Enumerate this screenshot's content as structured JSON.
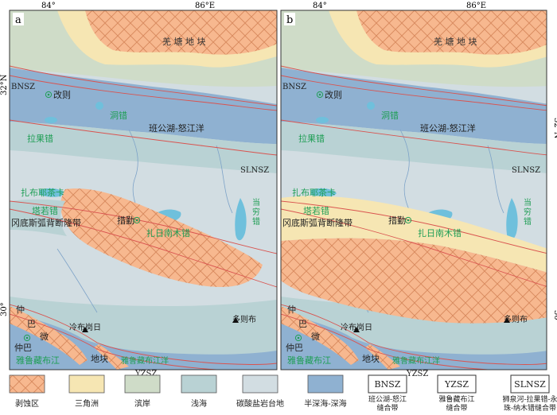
{
  "colors": {
    "erosion": "#f7b88f",
    "erosion_line": "#d88a5e",
    "delta": "#f6e6b3",
    "shore": "#cfdcc8",
    "shallow": "#b9d2d4",
    "carbonate": "#d2dde2",
    "deep": "#8fb1d1",
    "lake": "#6fc0dc",
    "fault": "#d9534f",
    "river": "#7ea3c8",
    "green_text": "#1f9e55",
    "frame": "#333333"
  },
  "coords": {
    "top_ticks": [
      "84°",
      "86°E"
    ],
    "lat_32": "32°N",
    "lat_30": "30°"
  },
  "panels": [
    {
      "letter": "a",
      "labels": {
        "qiangtang": "羌 塘 地 块",
        "bnsz": "BNSZ",
        "gaize": "改则",
        "dongcuo": "洞错",
        "bangong_ocean": "班公湖-怒江洋",
        "laguocuo": "拉果错",
        "slnsz": "SLNSZ",
        "zhabuye": "扎布耶茶卡",
        "taruocuo": "塔若错",
        "gangdise": "冈底斯弧背断隆带",
        "cuoqin": "措勤",
        "zhari": "扎日南木错",
        "dangqiong": "当穷错",
        "duobu": "多则布",
        "lengbu": "冷布岗日",
        "zhongba": "仲巴",
        "zhongba_area": "仲巴微",
        "diku": "地块",
        "yarlung": "雅鲁藏布江",
        "yarlung_ocean": "雅鲁藏布江洋",
        "yzsz": "YZSZ"
      }
    },
    {
      "letter": "b",
      "labels": {
        "qiangtang": "羌 塘 地 块",
        "bnsz": "BNSZ",
        "gaize": "改则",
        "dongcuo": "洞错",
        "bangong_ocean": "班公湖-怒江洋",
        "laguocuo": "拉果错",
        "slnsz": "SLNSZ",
        "zhabuye": "扎布耶茶卡",
        "taruocuo": "塔若错",
        "gangdise": "冈底斯弧背断隆带",
        "cuoqin": "措勤",
        "zhari": "扎日南木错",
        "dangqiong": "当穷错",
        "duobu": "多则布",
        "lengbu": "冷布岗日",
        "zhongba": "仲巴",
        "zhongba_area": "仲巴微",
        "diku": "地块",
        "yarlung": "雅鲁藏布江",
        "yarlung_ocean": "雅鲁藏布江洋",
        "yzsz": "YZSZ"
      }
    }
  ],
  "legend": [
    {
      "key": "erosion",
      "label": "剥蚀区",
      "type": "swatch"
    },
    {
      "key": "delta",
      "label": "三角洲",
      "type": "swatch"
    },
    {
      "key": "shore",
      "label": "滨岸",
      "type": "swatch"
    },
    {
      "key": "shallow",
      "label": "浅海",
      "type": "swatch"
    },
    {
      "key": "carbonate",
      "label": "碳酸盐岩台地",
      "type": "swatch"
    },
    {
      "key": "deep",
      "label": "半深海-深海",
      "type": "swatch"
    },
    {
      "key": "bnsz",
      "label": "班公湖-怒江缝合带",
      "type": "box",
      "box_text": "BNSZ"
    },
    {
      "key": "yzsz",
      "label": "雅鲁藏布江缝合带",
      "type": "box",
      "box_text": "YZSZ"
    },
    {
      "key": "slnsz",
      "label": "狮泉河-拉果错-永珠-纳木错缝合带",
      "type": "box",
      "box_text": "SLNSZ"
    }
  ]
}
